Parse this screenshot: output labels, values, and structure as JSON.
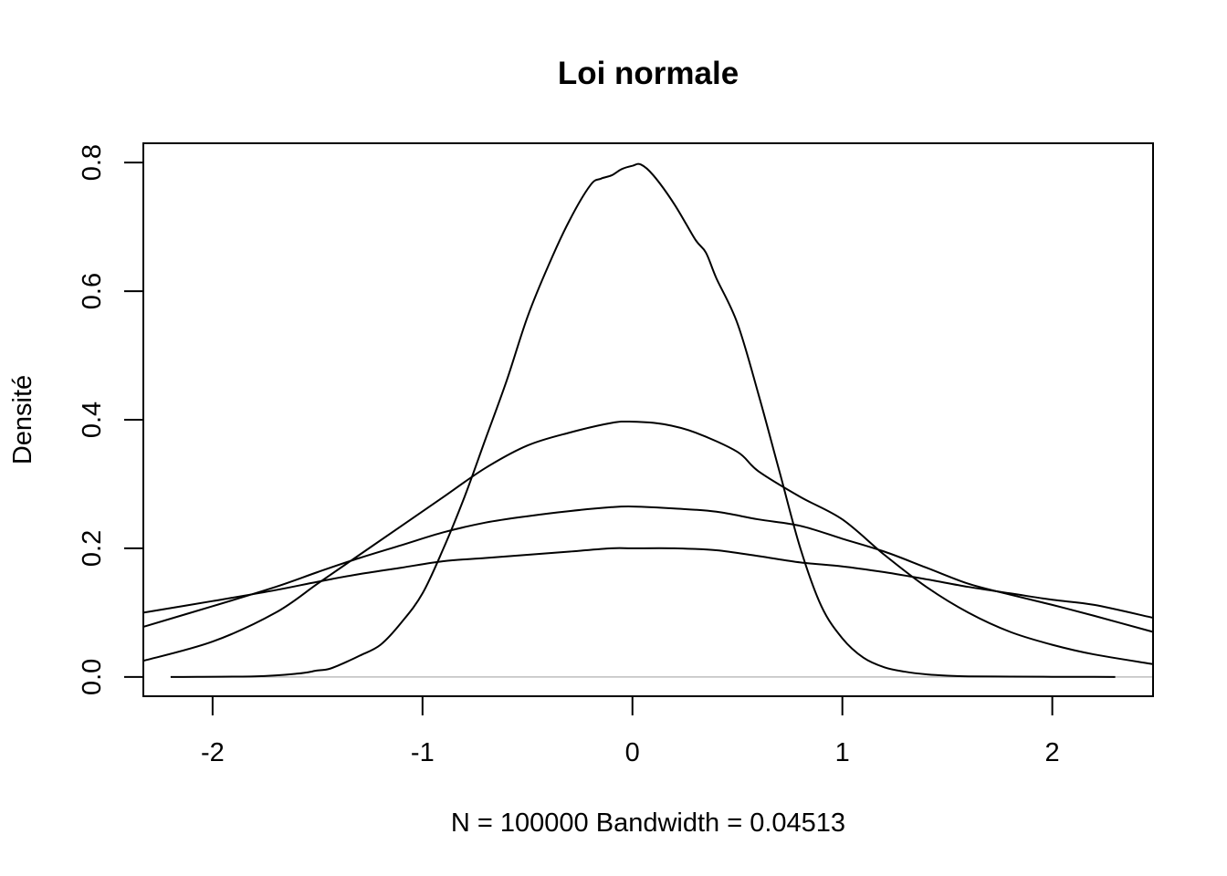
{
  "chart_data": {
    "type": "line",
    "title": "Loi normale",
    "xlabel": "N = 100000   Bandwidth = 0.04513",
    "ylabel": "Densité",
    "xlim": [
      -2.33,
      2.48
    ],
    "ylim": [
      -0.03,
      0.83
    ],
    "x_ticks": [
      {
        "value": -2,
        "label": "-2"
      },
      {
        "value": -1,
        "label": "-1"
      },
      {
        "value": 0,
        "label": "0"
      },
      {
        "value": 1,
        "label": "1"
      },
      {
        "value": 2,
        "label": "2"
      }
    ],
    "y_ticks": [
      {
        "value": 0.0,
        "label": "0.0"
      },
      {
        "value": 0.2,
        "label": "0.2"
      },
      {
        "value": 0.4,
        "label": "0.4"
      },
      {
        "value": 0.6,
        "label": "0.6"
      },
      {
        "value": 0.8,
        "label": "0.8"
      }
    ],
    "baseline": {
      "y": 0,
      "x_from": -2.2,
      "x_to": 2.48,
      "color": "#bebebe"
    },
    "grid": false,
    "series": [
      {
        "x": [
          -2.2,
          -1.8,
          -1.6,
          -1.5,
          -1.45,
          -1.4,
          -1.3,
          -1.2,
          -1.1,
          -1.0,
          -0.9,
          -0.8,
          -0.7,
          -0.6,
          -0.5,
          -0.4,
          -0.3,
          -0.2,
          -0.15,
          -0.1,
          -0.05,
          0.0,
          0.04,
          0.1,
          0.2,
          0.3,
          0.35,
          0.4,
          0.5,
          0.6,
          0.7,
          0.8,
          0.9,
          1.0,
          1.1,
          1.2,
          1.3,
          1.4,
          1.5,
          1.6,
          1.8,
          2.0,
          2.2,
          2.3
        ],
        "y": [
          0.0,
          0.001,
          0.005,
          0.01,
          0.012,
          0.018,
          0.033,
          0.05,
          0.085,
          0.13,
          0.2,
          0.28,
          0.37,
          0.46,
          0.56,
          0.64,
          0.71,
          0.765,
          0.775,
          0.78,
          0.79,
          0.795,
          0.797,
          0.78,
          0.735,
          0.68,
          0.66,
          0.62,
          0.55,
          0.44,
          0.32,
          0.2,
          0.11,
          0.06,
          0.03,
          0.015,
          0.008,
          0.004,
          0.002,
          0.001,
          0.0005,
          0.0002,
          0.0001,
          0.0
        ]
      },
      {
        "x": [
          -2.33,
          -2.0,
          -1.7,
          -1.5,
          -1.3,
          -1.1,
          -0.9,
          -0.7,
          -0.5,
          -0.3,
          -0.1,
          0.0,
          0.15,
          0.3,
          0.5,
          0.6,
          0.8,
          1.0,
          1.2,
          1.4,
          1.6,
          1.8,
          2.0,
          2.2,
          2.48
        ],
        "y": [
          0.025,
          0.055,
          0.1,
          0.145,
          0.19,
          0.235,
          0.28,
          0.325,
          0.36,
          0.38,
          0.395,
          0.397,
          0.393,
          0.38,
          0.35,
          0.32,
          0.28,
          0.245,
          0.19,
          0.14,
          0.1,
          0.07,
          0.05,
          0.035,
          0.02
        ]
      },
      {
        "x": [
          -2.33,
          -2.0,
          -1.7,
          -1.5,
          -1.3,
          -1.1,
          -0.9,
          -0.7,
          -0.5,
          -0.3,
          -0.1,
          0.0,
          0.2,
          0.4,
          0.6,
          0.8,
          1.0,
          1.2,
          1.4,
          1.6,
          1.8,
          2.0,
          2.2,
          2.48
        ],
        "y": [
          0.078,
          0.11,
          0.14,
          0.163,
          0.185,
          0.205,
          0.225,
          0.24,
          0.25,
          0.258,
          0.264,
          0.265,
          0.262,
          0.257,
          0.245,
          0.235,
          0.215,
          0.195,
          0.17,
          0.145,
          0.128,
          0.112,
          0.095,
          0.07
        ]
      },
      {
        "x": [
          -2.33,
          -2.0,
          -1.7,
          -1.5,
          -1.3,
          -1.1,
          -0.9,
          -0.7,
          -0.5,
          -0.3,
          -0.1,
          0.0,
          0.2,
          0.4,
          0.6,
          0.8,
          1.0,
          1.2,
          1.4,
          1.6,
          1.8,
          2.0,
          2.2,
          2.48
        ],
        "y": [
          0.1,
          0.118,
          0.135,
          0.148,
          0.16,
          0.17,
          0.18,
          0.185,
          0.19,
          0.195,
          0.2,
          0.2,
          0.2,
          0.197,
          0.188,
          0.178,
          0.172,
          0.163,
          0.152,
          0.14,
          0.13,
          0.12,
          0.112,
          0.092
        ]
      }
    ]
  }
}
